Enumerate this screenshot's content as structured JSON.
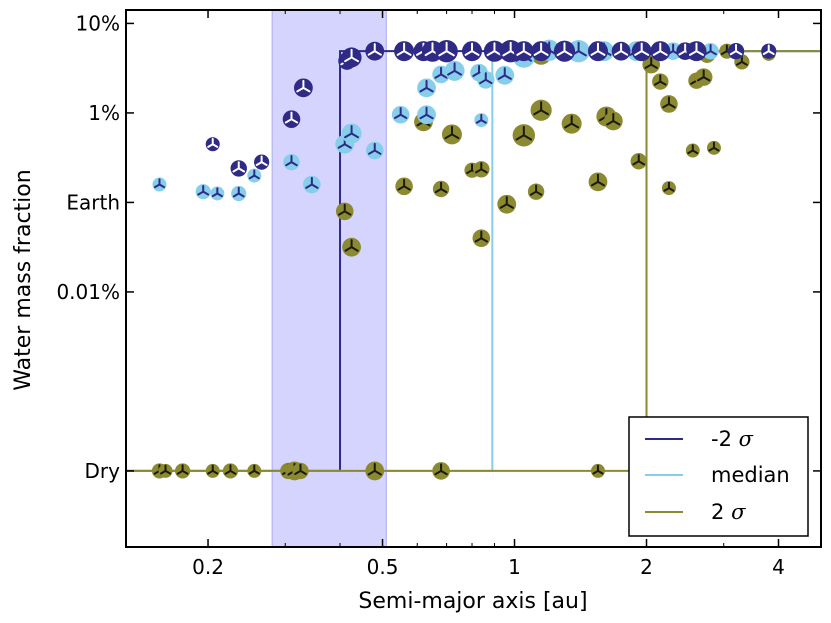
{
  "chart_data": {
    "type": "scatter",
    "xlabel": "Semi-major axis [au]",
    "ylabel": "Water mass fraction",
    "xscale": "log",
    "yscale": "log-with-dry-floor",
    "xlim": [
      0.13,
      5.0
    ],
    "ylim_log10": [
      -6.85,
      -0.85
    ],
    "x_ticks": [
      {
        "value": 0.2,
        "label": "0.2"
      },
      {
        "value": 0.5,
        "label": "0.5"
      },
      {
        "value": 1,
        "label": "1"
      },
      {
        "value": 2,
        "label": "2"
      },
      {
        "value": 4,
        "label": "4"
      }
    ],
    "y_ticks": [
      {
        "log10": -1,
        "label": "10%"
      },
      {
        "log10": -2,
        "label": "1%"
      },
      {
        "log10": -3,
        "label": "Earth"
      },
      {
        "log10": -4,
        "label": "0.01%"
      },
      {
        "log10": -6,
        "label": "Dry"
      }
    ],
    "shaded_band": {
      "x_range": [
        0.28,
        0.51
      ],
      "color": "#ccccff"
    },
    "colors": {
      "minus2sigma": "#2e2a86",
      "median": "#87ceeb",
      "plus2sigma": "#8c8a30"
    },
    "legend": {
      "position": "lower-right",
      "entries": [
        {
          "key": "minus2sigma",
          "label": "-2",
          "sigma": "σ"
        },
        {
          "key": "median",
          "label": "median",
          "sigma": ""
        },
        {
          "key": "plus2sigma",
          "label": "2",
          "sigma": "σ"
        }
      ]
    },
    "series": [
      {
        "name": "-2 σ",
        "key": "minus2sigma",
        "step_x": 0.4,
        "points": [
          [
            0.205,
            -2.35,
            0.5
          ],
          [
            0.235,
            -2.62,
            0.7
          ],
          [
            0.265,
            -2.55,
            0.6
          ],
          [
            0.31,
            -2.07,
            0.8
          ],
          [
            0.33,
            -1.72,
            0.9
          ],
          [
            0.415,
            -1.42,
            0.8
          ],
          [
            0.425,
            -1.38,
            1.0
          ],
          [
            0.48,
            -1.31,
            0.9
          ],
          [
            0.56,
            -1.31,
            1.0
          ],
          [
            0.62,
            -1.31,
            1.0
          ],
          [
            0.65,
            -1.31,
            1.1
          ],
          [
            0.7,
            -1.31,
            1.2
          ],
          [
            0.8,
            -1.31,
            1.0
          ],
          [
            0.9,
            -1.31,
            1.1
          ],
          [
            0.98,
            -1.31,
            1.2
          ],
          [
            1.05,
            -1.31,
            1.0
          ],
          [
            1.15,
            -1.31,
            1.0
          ],
          [
            1.3,
            -1.31,
            1.1
          ],
          [
            1.55,
            -1.31,
            1.0
          ],
          [
            1.75,
            -1.31,
            0.9
          ],
          [
            1.95,
            -1.31,
            1.0
          ],
          [
            2.15,
            -1.31,
            1.0
          ],
          [
            2.45,
            -1.31,
            0.8
          ],
          [
            2.6,
            -1.31,
            1.0
          ],
          [
            3.2,
            -1.31,
            0.7
          ],
          [
            3.8,
            -1.31,
            0.6
          ]
        ]
      },
      {
        "name": "median",
        "key": "median",
        "step_x": 0.89,
        "points": [
          [
            0.155,
            -2.8,
            0.5
          ],
          [
            0.195,
            -2.88,
            0.6
          ],
          [
            0.21,
            -2.9,
            0.5
          ],
          [
            0.235,
            -2.9,
            0.6
          ],
          [
            0.255,
            -2.7,
            0.5
          ],
          [
            0.31,
            -2.55,
            0.7
          ],
          [
            0.345,
            -2.8,
            0.8
          ],
          [
            0.41,
            -2.35,
            0.9
          ],
          [
            0.425,
            -2.23,
            1.0
          ],
          [
            0.48,
            -2.42,
            0.8
          ],
          [
            0.55,
            -2.02,
            0.8
          ],
          [
            0.63,
            -2.02,
            0.9
          ],
          [
            0.63,
            -1.72,
            0.9
          ],
          [
            0.68,
            -1.57,
            0.8
          ],
          [
            0.73,
            -1.53,
            1.0
          ],
          [
            0.83,
            -1.55,
            0.8
          ],
          [
            0.86,
            -1.63,
            0.8
          ],
          [
            0.84,
            -2.08,
            0.5
          ],
          [
            0.95,
            -1.58,
            0.9
          ],
          [
            1.05,
            -1.37,
            1.2
          ],
          [
            1.2,
            -1.3,
            1.1
          ],
          [
            1.4,
            -1.31,
            1.2
          ],
          [
            1.6,
            -1.31,
            1.0
          ],
          [
            1.9,
            -1.31,
            1.0
          ],
          [
            2.15,
            -1.31,
            0.9
          ],
          [
            2.3,
            -1.31,
            0.8
          ],
          [
            2.55,
            -1.31,
            0.8
          ],
          [
            2.8,
            -1.31,
            0.7
          ],
          [
            3.2,
            -1.31,
            0.7
          ],
          [
            3.8,
            -1.31,
            0.5
          ]
        ]
      },
      {
        "name": "2 σ",
        "key": "plus2sigma",
        "step_x": 2.0,
        "points": [
          [
            0.41,
            -3.1,
            0.8
          ],
          [
            0.425,
            -3.5,
            0.9
          ],
          [
            0.56,
            -2.82,
            0.8
          ],
          [
            0.62,
            -2.1,
            0.9
          ],
          [
            0.68,
            -2.85,
            0.7
          ],
          [
            0.72,
            -2.24,
            1.0
          ],
          [
            0.8,
            -2.64,
            0.6
          ],
          [
            0.84,
            -2.63,
            0.7
          ],
          [
            0.84,
            -3.4,
            0.8
          ],
          [
            0.96,
            -3.02,
            0.9
          ],
          [
            1.05,
            -2.25,
            1.2
          ],
          [
            1.12,
            -2.88,
            0.7
          ],
          [
            1.15,
            -1.97,
            1.1
          ],
          [
            1.15,
            -1.35,
            1.0
          ],
          [
            1.35,
            -2.12,
            1.0
          ],
          [
            1.55,
            -2.77,
            0.9
          ],
          [
            1.62,
            -2.04,
            1.0
          ],
          [
            1.68,
            -2.09,
            0.9
          ],
          [
            1.92,
            -2.54,
            0.7
          ],
          [
            2.05,
            -1.46,
            0.8
          ],
          [
            2.15,
            -1.65,
            0.7
          ],
          [
            2.25,
            -1.9,
            0.8
          ],
          [
            2.25,
            -2.84,
            0.5
          ],
          [
            2.6,
            -1.64,
            0.7
          ],
          [
            2.7,
            -1.6,
            0.8
          ],
          [
            2.55,
            -2.42,
            0.5
          ],
          [
            2.85,
            -2.39,
            0.5
          ],
          [
            2.75,
            -1.35,
            0.7
          ],
          [
            3.05,
            -1.31,
            0.6
          ],
          [
            3.3,
            -1.43,
            0.6
          ],
          [
            3.8,
            -1.34,
            0.5
          ],
          [
            0.155,
            -6.0,
            0.6
          ],
          [
            0.16,
            -6.0,
            0.5
          ],
          [
            0.175,
            -6.0,
            0.6
          ],
          [
            0.205,
            -6.0,
            0.5
          ],
          [
            0.225,
            -6.0,
            0.6
          ],
          [
            0.255,
            -6.0,
            0.5
          ],
          [
            0.305,
            -6.0,
            0.7
          ],
          [
            0.315,
            -6.0,
            0.9
          ],
          [
            0.325,
            -6.0,
            0.7
          ],
          [
            0.48,
            -6.0,
            0.9
          ],
          [
            0.68,
            -6.0,
            0.8
          ],
          [
            1.55,
            -6.0,
            0.5
          ]
        ]
      }
    ]
  }
}
